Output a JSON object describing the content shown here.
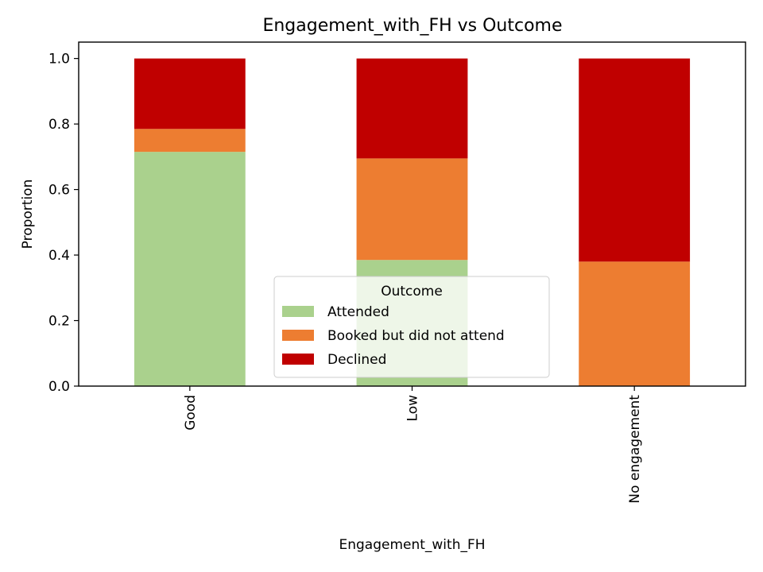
{
  "chart_data": {
    "type": "bar",
    "stacked": true,
    "title": "Engagement_with_FH vs Outcome",
    "xlabel": "Engagement_with_FH",
    "ylabel": "Proportion",
    "categories": [
      "Good",
      "Low",
      "No engagement"
    ],
    "ylim": [
      0,
      1.05
    ],
    "yticks": [
      0.0,
      0.2,
      0.4,
      0.6,
      0.8,
      1.0
    ],
    "ytick_labels": [
      "0.0",
      "0.2",
      "0.4",
      "0.6",
      "0.8",
      "1.0"
    ],
    "series": [
      {
        "name": "Attended",
        "color": "#aad18d",
        "values": [
          0.715,
          0.385,
          0.0
        ]
      },
      {
        "name": "Booked but did not attend",
        "color": "#ed7d31",
        "values": [
          0.07,
          0.31,
          0.38
        ]
      },
      {
        "name": "Declined",
        "color": "#c00000",
        "values": [
          0.215,
          0.305,
          0.62
        ]
      }
    ],
    "legend": {
      "title": "Outcome",
      "placement": "lower-center"
    },
    "grid": false
  }
}
